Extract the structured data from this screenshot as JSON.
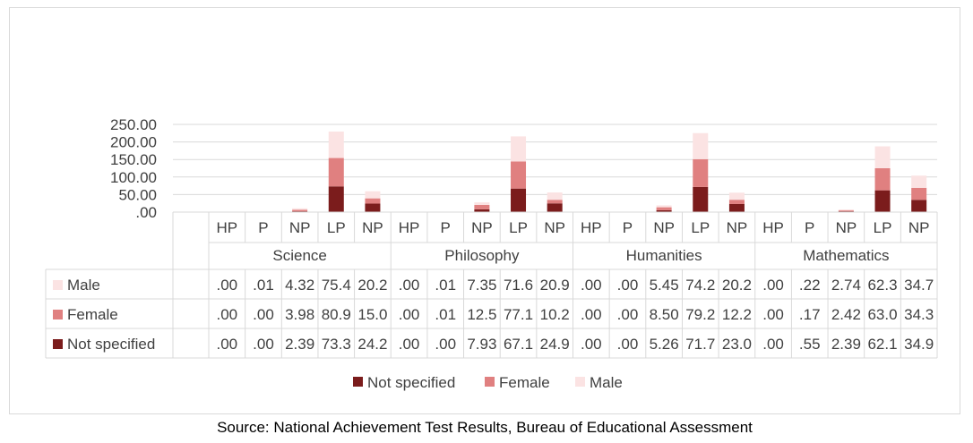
{
  "source_note": "Source: National Achievement Test Results, Bureau of Educational Assessment",
  "colors": {
    "not_specified": "#7b1c1c",
    "female": "#e08080",
    "male": "#fbe3e3",
    "gridline": "#d9d9d9",
    "text": "#404040"
  },
  "chart_data": {
    "type": "bar",
    "stacked": true,
    "title": "",
    "xlabel": "",
    "ylabel": "",
    "ylim": [
      0,
      250
    ],
    "y_ticks": [
      ".00",
      "50.00",
      "100.00",
      "150.00",
      "200.00",
      "250.00"
    ],
    "grid": true,
    "legend_position": "bottom",
    "groups": [
      "Science",
      "Philosophy",
      "Humanities",
      "Mathematics"
    ],
    "subcategories": [
      "HP",
      "P",
      "NP",
      "LP",
      "NP"
    ],
    "categories": [
      "Science HP",
      "Science P",
      "Science NP",
      "Science LP",
      "Science NP",
      "Philosophy HP",
      "Philosophy P",
      "Philosophy NP",
      "Philosophy LP",
      "Philosophy NP",
      "Humanities HP",
      "Humanities P",
      "Humanities NP",
      "Humanities LP",
      "Humanities NP",
      "Mathematics HP",
      "Mathematics P",
      "Mathematics NP",
      "Mathematics LP",
      "Mathematics NP"
    ],
    "series": [
      {
        "name": "Male",
        "values": [
          0,
          0.01,
          4.32,
          75.4,
          20.2,
          0,
          0.01,
          7.35,
          71.6,
          20.9,
          0,
          0,
          5.45,
          74.2,
          20.2,
          0,
          0.22,
          2.74,
          62.3,
          34.7
        ],
        "labels": [
          ".00",
          ".01",
          "4.32",
          "75.4",
          "20.2",
          ".00",
          ".01",
          "7.35",
          "71.6",
          "20.9",
          ".00",
          ".00",
          "5.45",
          "74.2",
          "20.2",
          ".00",
          ".22",
          "2.74",
          "62.3",
          "34.7"
        ]
      },
      {
        "name": "Female",
        "values": [
          0,
          0,
          3.98,
          80.9,
          15.0,
          0,
          0.01,
          12.5,
          77.1,
          10.2,
          0,
          0,
          8.5,
          79.2,
          12.2,
          0,
          0.17,
          2.42,
          63.0,
          34.3
        ],
        "labels": [
          ".00",
          ".00",
          "3.98",
          "80.9",
          "15.0",
          ".00",
          ".01",
          "12.5",
          "77.1",
          "10.2",
          ".00",
          ".00",
          "8.50",
          "79.2",
          "12.2",
          ".00",
          ".17",
          "2.42",
          "63.0",
          "34.3"
        ]
      },
      {
        "name": "Not specified",
        "values": [
          0,
          0,
          2.39,
          73.3,
          24.2,
          0,
          0,
          7.93,
          67.1,
          24.9,
          0,
          0,
          5.26,
          71.7,
          23.0,
          0,
          0.55,
          2.39,
          62.1,
          34.9
        ],
        "labels": [
          ".00",
          ".00",
          "2.39",
          "73.3",
          "24.2",
          ".00",
          ".00",
          "7.93",
          "67.1",
          "24.9",
          ".00",
          ".00",
          "5.26",
          "71.7",
          "23.0",
          ".00",
          ".55",
          "2.39",
          "62.1",
          "34.9"
        ]
      }
    ],
    "legend": [
      "Not specified",
      "Female",
      "Male"
    ]
  }
}
